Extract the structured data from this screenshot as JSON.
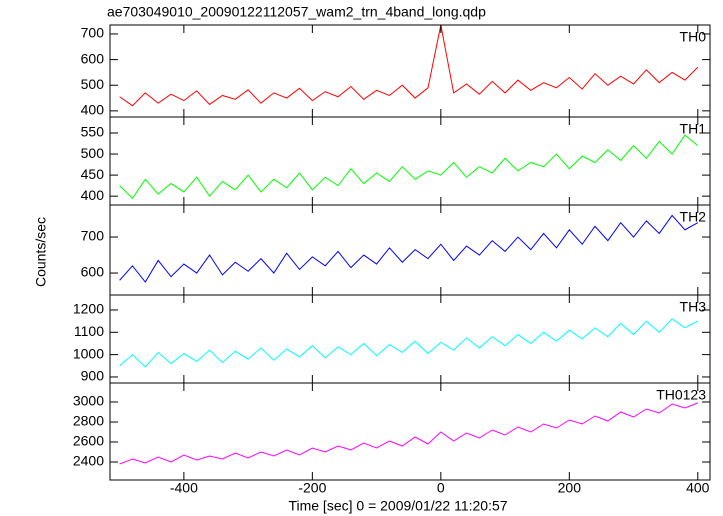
{
  "title": "ae703049010_20090122112057_wam2_trn_4band_long.qdp",
  "ylabel": "Counts/sec",
  "xlabel": "Time [sec] 0 = 2009/01/22 11:20:57",
  "chart_data": [
    {
      "type": "line",
      "label": "TH0",
      "color": "#ff0000",
      "x": [
        -500,
        -480,
        -460,
        -440,
        -420,
        -400,
        -380,
        -360,
        -340,
        -320,
        -300,
        -280,
        -260,
        -240,
        -220,
        -200,
        -180,
        -160,
        -140,
        -120,
        -100,
        -80,
        -60,
        -40,
        -20,
        0,
        20,
        40,
        60,
        80,
        100,
        120,
        140,
        160,
        180,
        200,
        220,
        240,
        260,
        280,
        300,
        320,
        340,
        360,
        380,
        400
      ],
      "values": [
        455,
        420,
        470,
        430,
        465,
        440,
        478,
        425,
        460,
        445,
        482,
        430,
        470,
        450,
        488,
        440,
        475,
        455,
        495,
        445,
        480,
        460,
        500,
        450,
        490,
        735,
        470,
        505,
        465,
        515,
        470,
        520,
        480,
        510,
        490,
        530,
        485,
        545,
        500,
        535,
        505,
        560,
        510,
        550,
        520,
        570
      ],
      "xlim": [
        -515,
        419
      ],
      "xticks": [
        -400,
        -200,
        0,
        200,
        400
      ],
      "ylim": [
        376,
        735
      ],
      "yticks": [
        400,
        500,
        600,
        700
      ]
    },
    {
      "type": "line",
      "label": "TH1",
      "color": "#00ff00",
      "x": [
        -500,
        -480,
        -460,
        -440,
        -420,
        -400,
        -380,
        -360,
        -340,
        -320,
        -300,
        -280,
        -260,
        -240,
        -220,
        -200,
        -180,
        -160,
        -140,
        -120,
        -100,
        -80,
        -60,
        -40,
        -20,
        0,
        20,
        40,
        60,
        80,
        100,
        120,
        140,
        160,
        180,
        200,
        220,
        240,
        260,
        280,
        300,
        320,
        340,
        360,
        380,
        400
      ],
      "values": [
        425,
        395,
        440,
        405,
        430,
        410,
        445,
        400,
        435,
        415,
        450,
        410,
        440,
        420,
        455,
        415,
        445,
        425,
        465,
        430,
        455,
        435,
        470,
        440,
        460,
        450,
        480,
        445,
        470,
        455,
        490,
        460,
        480,
        470,
        500,
        465,
        495,
        480,
        510,
        485,
        520,
        490,
        530,
        500,
        545,
        520
      ],
      "xlim": [
        -515,
        419
      ],
      "xticks": [
        -400,
        -200,
        0,
        200,
        400
      ],
      "ylim": [
        379,
        588
      ],
      "yticks": [
        400,
        450,
        500,
        550
      ]
    },
    {
      "type": "line",
      "label": "TH2",
      "color": "#0000ff",
      "x": [
        -500,
        -480,
        -460,
        -440,
        -420,
        -400,
        -380,
        -360,
        -340,
        -320,
        -300,
        -280,
        -260,
        -240,
        -220,
        -200,
        -180,
        -160,
        -140,
        -120,
        -100,
        -80,
        -60,
        -40,
        -20,
        0,
        20,
        40,
        60,
        80,
        100,
        120,
        140,
        160,
        180,
        200,
        220,
        240,
        260,
        280,
        300,
        320,
        340,
        360,
        380,
        400
      ],
      "values": [
        580,
        620,
        575,
        635,
        590,
        625,
        600,
        650,
        595,
        630,
        605,
        640,
        600,
        655,
        610,
        645,
        620,
        660,
        615,
        650,
        625,
        670,
        630,
        665,
        640,
        680,
        635,
        675,
        650,
        690,
        660,
        700,
        665,
        710,
        670,
        720,
        680,
        730,
        690,
        740,
        700,
        745,
        710,
        760,
        720,
        740
      ],
      "xlim": [
        -515,
        419
      ],
      "xticks": [
        -400,
        -200,
        0,
        200,
        400
      ],
      "ylim": [
        539,
        789
      ],
      "yticks": [
        600,
        700
      ]
    },
    {
      "type": "line",
      "label": "TH3",
      "color": "#00ffff",
      "x": [
        -500,
        -480,
        -460,
        -440,
        -420,
        -400,
        -380,
        -360,
        -340,
        -320,
        -300,
        -280,
        -260,
        -240,
        -220,
        -200,
        -180,
        -160,
        -140,
        -120,
        -100,
        -80,
        -60,
        -40,
        -20,
        0,
        20,
        40,
        60,
        80,
        100,
        120,
        140,
        160,
        180,
        200,
        220,
        240,
        260,
        280,
        300,
        320,
        340,
        360,
        380,
        400
      ],
      "values": [
        950,
        1000,
        945,
        1010,
        960,
        1005,
        970,
        1020,
        965,
        1015,
        980,
        1030,
        975,
        1025,
        990,
        1040,
        985,
        1035,
        1000,
        1050,
        995,
        1045,
        1010,
        1060,
        1005,
        1055,
        1020,
        1075,
        1030,
        1080,
        1040,
        1090,
        1050,
        1100,
        1060,
        1110,
        1070,
        1120,
        1080,
        1140,
        1090,
        1150,
        1100,
        1160,
        1120,
        1150
      ],
      "xlim": [
        -515,
        419
      ],
      "xticks": [
        -400,
        -200,
        0,
        200,
        400
      ],
      "ylim": [
        873,
        1267
      ],
      "yticks": [
        900,
        1000,
        1100,
        1200
      ]
    },
    {
      "type": "line",
      "label": "TH0123",
      "color": "#ff00ff",
      "x": [
        -500,
        -480,
        -460,
        -440,
        -420,
        -400,
        -380,
        -360,
        -340,
        -320,
        -300,
        -280,
        -260,
        -240,
        -220,
        -200,
        -180,
        -160,
        -140,
        -120,
        -100,
        -80,
        -60,
        -40,
        -20,
        0,
        20,
        40,
        60,
        80,
        100,
        120,
        140,
        160,
        180,
        200,
        220,
        240,
        260,
        280,
        300,
        320,
        340,
        360,
        380,
        400
      ],
      "values": [
        2380,
        2430,
        2390,
        2450,
        2400,
        2470,
        2420,
        2460,
        2430,
        2490,
        2440,
        2500,
        2460,
        2520,
        2470,
        2540,
        2500,
        2560,
        2520,
        2590,
        2540,
        2610,
        2560,
        2650,
        2580,
        2700,
        2610,
        2690,
        2640,
        2720,
        2670,
        2750,
        2700,
        2780,
        2740,
        2820,
        2780,
        2860,
        2810,
        2900,
        2850,
        2930,
        2890,
        2980,
        2940,
        2990
      ],
      "xlim": [
        -515,
        419
      ],
      "xticks": [
        -400,
        -200,
        0,
        200,
        400
      ],
      "ylim": [
        2220,
        3190
      ],
      "yticks": [
        2400,
        2600,
        2800,
        3000
      ]
    }
  ]
}
